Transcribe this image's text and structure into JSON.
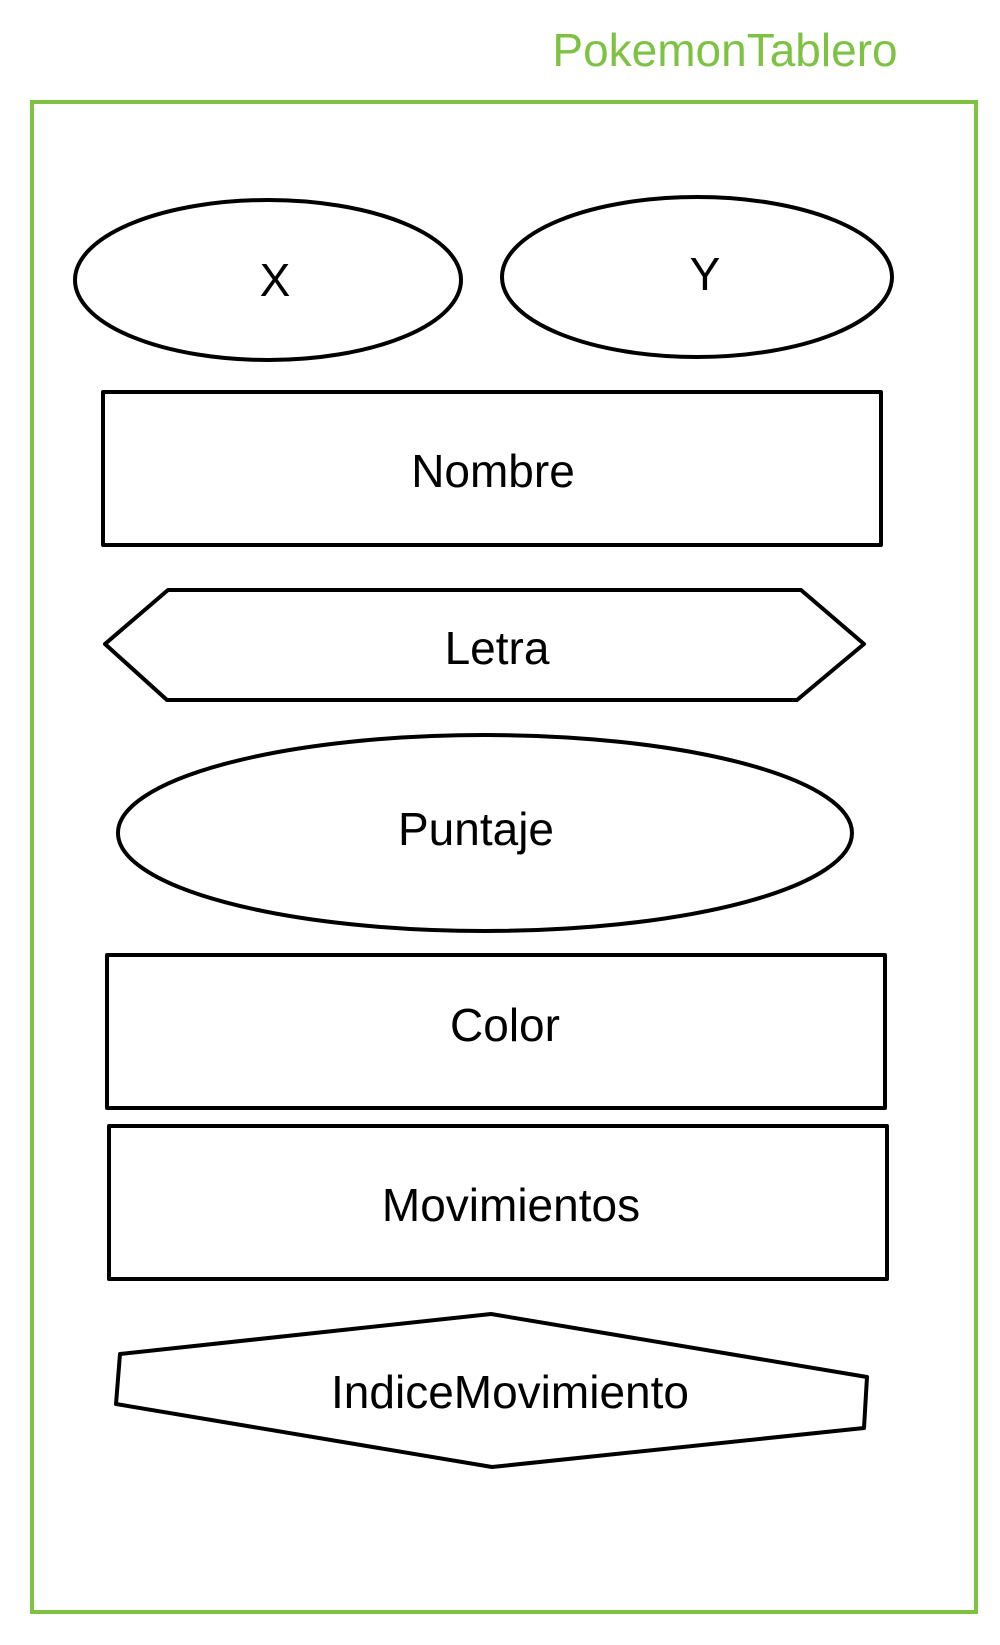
{
  "container": {
    "title": "PokemonTablero",
    "color": "#7DC242"
  },
  "fields": {
    "x": "X",
    "y": "Y",
    "nombre": "Nombre",
    "letra": "Letra",
    "puntaje": "Puntaje",
    "color": "Color",
    "movimientos": "Movimientos",
    "indice_movimiento": "IndiceMovimiento"
  }
}
